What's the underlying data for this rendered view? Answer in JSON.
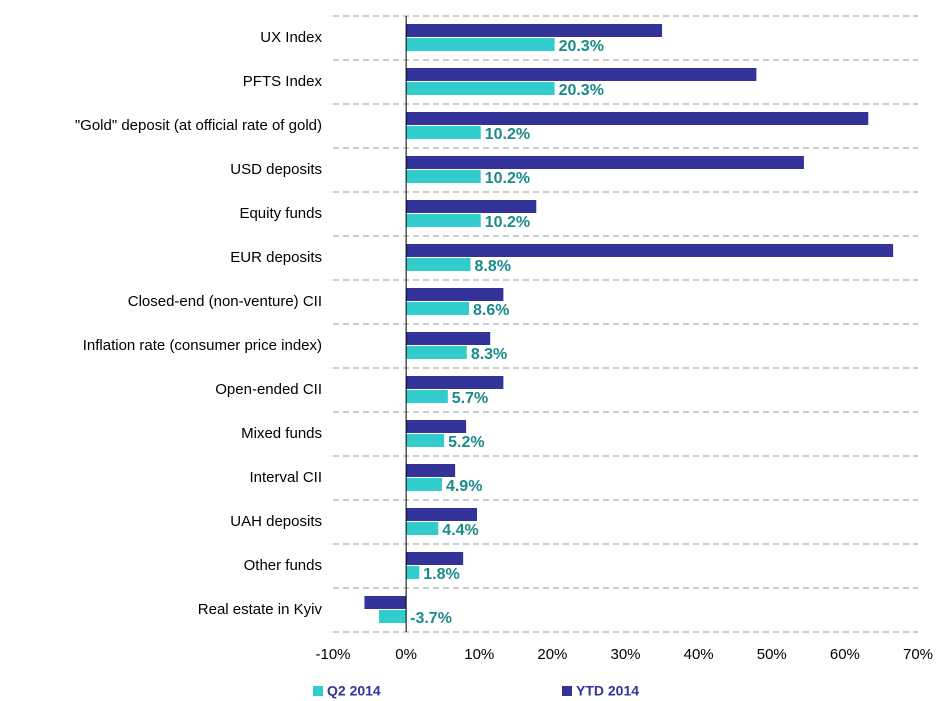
{
  "chart_data": {
    "type": "bar",
    "orientation": "horizontal",
    "categories": [
      "UX Index",
      "PFTS Index",
      "\"Gold\" deposit (at official rate of gold)",
      "USD deposits",
      "Equity funds",
      "EUR deposits",
      "Closed-end (non-venture) CII",
      "Inflation rate (consumer price index)",
      "Open-ended CII",
      "Mixed funds",
      "Interval CII",
      "UAH deposits",
      "Other funds",
      "Real estate in Kyiv"
    ],
    "series": [
      {
        "name": "Q2 2014",
        "color": "#33cccc",
        "values": [
          20.3,
          20.3,
          10.2,
          10.2,
          10.2,
          8.8,
          8.6,
          8.3,
          5.7,
          5.2,
          4.9,
          4.4,
          1.8,
          -3.7
        ],
        "value_labels": [
          "20.3%",
          "20.3%",
          "10.2%",
          "10.2%",
          "10.2%",
          "8.8%",
          "8.6%",
          "8.3%",
          "5.7%",
          "5.2%",
          "4.9%",
          "4.4%",
          "1.8%",
          "-3.7%"
        ]
      },
      {
        "name": "YTD 2014",
        "color": "#333399",
        "values": [
          35.0,
          47.9,
          63.2,
          54.4,
          17.8,
          66.6,
          13.3,
          11.5,
          13.3,
          8.2,
          6.7,
          9.7,
          7.8,
          -5.7
        ]
      }
    ],
    "xlim": [
      -10,
      70
    ],
    "xticks": [
      {
        "value": -10,
        "label": "-10%"
      },
      {
        "value": 0,
        "label": "0%"
      },
      {
        "value": 10,
        "label": "10%"
      },
      {
        "value": 20,
        "label": "20%"
      },
      {
        "value": 30,
        "label": "30%"
      },
      {
        "value": 40,
        "label": "40%"
      },
      {
        "value": 50,
        "label": "50%"
      },
      {
        "value": 60,
        "label": "60%"
      },
      {
        "value": 70,
        "label": "70%"
      }
    ],
    "grid": true
  }
}
